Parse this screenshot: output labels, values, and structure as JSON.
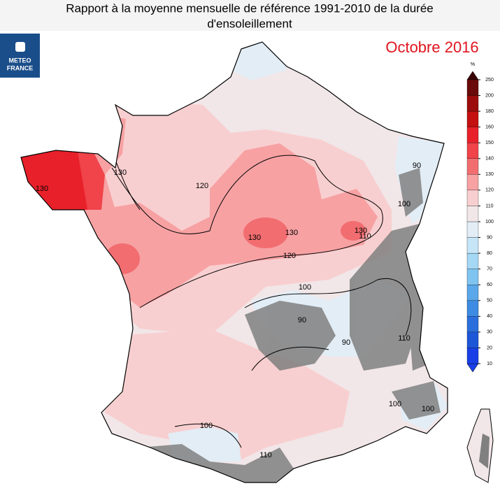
{
  "header": {
    "title_lines": [
      "Rapport à la moyenne mensuelle de référence 1991-2010 de la durée",
      "d'ensoleillement"
    ],
    "period": "Octobre 2016"
  },
  "logo": {
    "lines": [
      "METEO",
      "FRANCE"
    ]
  },
  "legend": {
    "unit": "%",
    "ticks": [
      10,
      20,
      30,
      40,
      50,
      60,
      70,
      80,
      90,
      100,
      110,
      120,
      130,
      140,
      150,
      160,
      180,
      200,
      250
    ],
    "colors": [
      "#1a3fe6",
      "#1d57d8",
      "#2a6fdc",
      "#3d8be3",
      "#5aa8ea",
      "#7fc4f0",
      "#a4d8f5",
      "#c6e6f8",
      "#e2edf6",
      "#f1e6e8",
      "#f8cfd0",
      "#f7a1a3",
      "#f26d70",
      "#f0434a",
      "#e8202a",
      "#c41010",
      "#9c0c0c",
      "#6b0a0a"
    ]
  },
  "contour_labels": [
    130,
    130,
    120,
    130,
    130,
    130,
    120,
    110,
    100,
    90,
    90,
    100,
    90,
    110,
    100,
    100,
    100,
    110
  ]
}
